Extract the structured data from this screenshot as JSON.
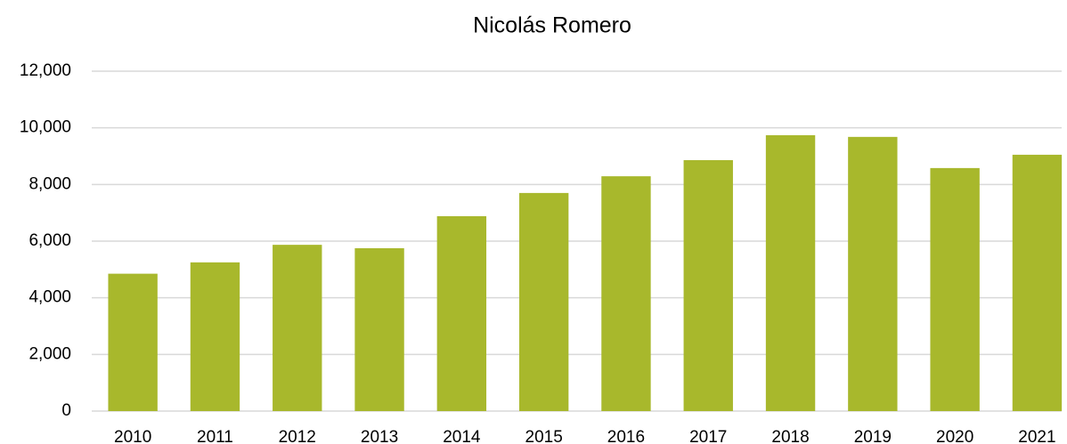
{
  "chart_data": {
    "type": "bar",
    "title": "Nicolás Romero",
    "categories": [
      "2010",
      "2011",
      "2012",
      "2013",
      "2014",
      "2015",
      "2016",
      "2017",
      "2018",
      "2019",
      "2020",
      "2021"
    ],
    "values": [
      4850,
      5250,
      5870,
      5750,
      6880,
      7700,
      8290,
      8860,
      9740,
      9680,
      8580,
      9050
    ],
    "color": "#a8b82c",
    "ylim": [
      0,
      12000
    ],
    "yticks": [
      0,
      {
        "value": 2000,
        "label": "2,000"
      },
      {
        "value": 4000,
        "label": "4,000"
      },
      {
        "value": 6000,
        "label": "6,000"
      },
      {
        "value": 8000,
        "label": "8,000"
      },
      {
        "value": 10000,
        "label": "10,000"
      },
      {
        "value": 12000,
        "label": "12,000"
      }
    ],
    "grid": true
  }
}
